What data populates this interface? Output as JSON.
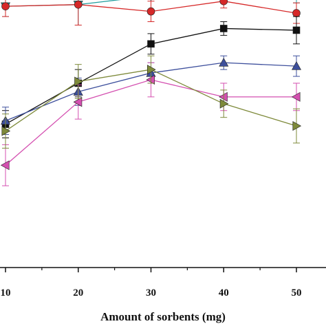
{
  "chart_data": {
    "type": "line",
    "xlabel": "Amount of sorbents (mg)",
    "ylabel": "",
    "x": [
      10,
      20,
      30,
      40,
      50
    ],
    "xticks": [
      10,
      20,
      30,
      40,
      50
    ],
    "xlim": [
      9.2,
      54.5
    ],
    "ylim": [
      0,
      100
    ],
    "grid": false,
    "series": [
      {
        "color": "#1f9e9e",
        "marker": "triangle-down",
        "values": [
          88.5,
          89,
          91.5,
          93.5,
          92.5
        ],
        "errors": [
          3,
          6,
          4,
          2,
          3
        ]
      },
      {
        "color": "#d62828",
        "marker": "circle",
        "values": [
          88.5,
          89,
          87,
          90,
          86.5
        ],
        "errors": [
          3,
          6,
          3,
          2,
          3
        ]
      },
      {
        "color": "#111111",
        "marker": "square",
        "values": [
          54,
          66,
          77.5,
          82,
          81.5
        ],
        "errors": [
          4,
          4,
          3,
          2,
          4
        ]
      },
      {
        "color": "#3d4f9c",
        "marker": "triangle-up",
        "values": [
          55,
          63.5,
          69,
          72,
          71
        ],
        "errors": [
          4,
          4,
          3,
          2,
          3
        ]
      },
      {
        "color": "#d44fb0",
        "marker": "triangle-left",
        "values": [
          42,
          60.5,
          67,
          62,
          62
        ],
        "errors": [
          6,
          5,
          5,
          4,
          4
        ]
      },
      {
        "color": "#7e8a3a",
        "marker": "triangle-right",
        "values": [
          52,
          66.5,
          70,
          60,
          53.5
        ],
        "errors": [
          5,
          5,
          4,
          4,
          5
        ]
      }
    ]
  }
}
